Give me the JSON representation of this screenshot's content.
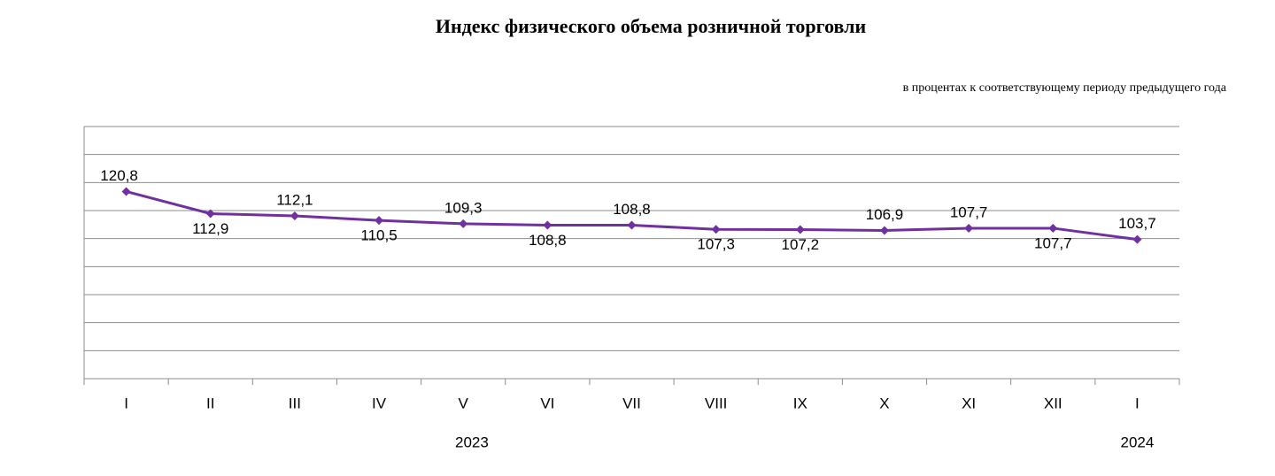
{
  "chart_data": {
    "type": "line",
    "title": "Индекс физического объема розничной торговли",
    "subtitle": "в процентах к соответствующему периоду предыдущего года",
    "categories": [
      "I",
      "II",
      "III",
      "IV",
      "V",
      "VI",
      "VII",
      "VIII",
      "IX",
      "X",
      "XI",
      "XII",
      "I"
    ],
    "groups": [
      {
        "label": "2023",
        "span": 12
      },
      {
        "label": "2024",
        "span": 1
      }
    ],
    "series": [
      {
        "color": "#7030a0",
        "values": [
          120.8,
          112.9,
          112.1,
          110.5,
          109.3,
          108.8,
          108.8,
          107.3,
          107.2,
          106.9,
          107.7,
          107.7,
          103.7
        ],
        "value_labels": [
          "120,8",
          "112,9",
          "112,1",
          "110,5",
          "109,3",
          "108,8",
          "108,8",
          "107,3",
          "107,2",
          "106,9",
          "107,7",
          "107,7",
          "103,7"
        ]
      }
    ],
    "ylim": [
      54,
      144
    ],
    "yticks": [
      54,
      64,
      74,
      84,
      94,
      104,
      114,
      124,
      134,
      144
    ],
    "grid": true
  }
}
